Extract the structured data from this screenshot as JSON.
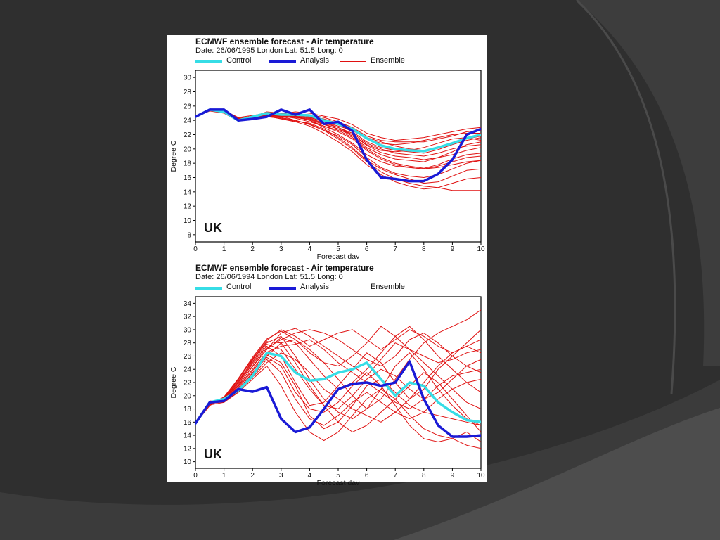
{
  "colors": {
    "background": "#2f2f2f",
    "arc_dark": "#3d3d3d",
    "arc_light": "#585858",
    "control": "#36dde6",
    "analysis": "#1a1ad6",
    "ensemble": "#e01010"
  },
  "chart_data": [
    {
      "type": "line",
      "title": "ECMWF ensemble forecast - Air temperature",
      "subtitle": "Date: 26/06/1995 London Lat: 51.5 Long: 0",
      "xlabel": "Forecast day",
      "ylabel": "Degree C",
      "annotation": "UK",
      "xlim": [
        0,
        10
      ],
      "ylim": [
        7,
        31
      ],
      "xticks": [
        "0",
        "1",
        "2",
        "3",
        "4",
        "5",
        "6",
        "7",
        "8",
        "9",
        "10"
      ],
      "yticks": [
        "8",
        "10",
        "12",
        "14",
        "16",
        "18",
        "20",
        "22",
        "24",
        "26",
        "28",
        "30"
      ],
      "grid": false,
      "legend_position": "top",
      "x": [
        0,
        0.5,
        1,
        1.5,
        2,
        2.5,
        3,
        3.5,
        4,
        4.5,
        5,
        5.5,
        6,
        6.5,
        7,
        7.5,
        8,
        8.5,
        9,
        9.5,
        10
      ],
      "series": [
        {
          "name": "Control",
          "role": "control",
          "values": [
            24.5,
            25.5,
            25.2,
            24.0,
            24.5,
            25.0,
            24.8,
            24.8,
            24.7,
            24.0,
            23.5,
            22.8,
            21.5,
            20.5,
            20.0,
            19.8,
            19.7,
            20.2,
            20.8,
            21.5,
            22.0
          ]
        },
        {
          "name": "Analysis",
          "role": "analysis",
          "values": [
            24.5,
            25.5,
            25.5,
            24.0,
            24.2,
            24.5,
            25.5,
            24.8,
            25.5,
            23.5,
            23.8,
            22.5,
            18.5,
            16.0,
            15.8,
            15.5,
            15.5,
            16.5,
            18.5,
            22.0,
            22.8
          ]
        }
      ],
      "ensemble": {
        "name": "Ensemble",
        "members": [
          [
            24.5,
            25.4,
            25.3,
            24.2,
            24.6,
            24.9,
            24.7,
            24.5,
            24.2,
            23.5,
            22.8,
            22.0,
            20.5,
            19.5,
            19.0,
            18.8,
            18.5,
            18.8,
            19.2,
            19.8,
            20.2
          ],
          [
            24.5,
            25.6,
            25.1,
            24.3,
            24.3,
            24.6,
            24.5,
            24.8,
            24.6,
            24.0,
            23.4,
            22.4,
            21.0,
            20.2,
            19.8,
            19.6,
            19.4,
            19.9,
            20.6,
            21.2,
            21.6
          ],
          [
            24.5,
            25.5,
            25.2,
            24.1,
            24.5,
            25.2,
            25.0,
            24.6,
            24.0,
            23.0,
            22.0,
            20.8,
            19.2,
            18.2,
            17.6,
            17.4,
            17.2,
            17.6,
            18.2,
            18.8,
            19.0
          ],
          [
            24.5,
            25.5,
            25.4,
            24.4,
            24.7,
            25.0,
            24.9,
            25.2,
            25.0,
            24.6,
            24.2,
            23.4,
            22.2,
            21.6,
            21.2,
            21.4,
            21.6,
            22.0,
            22.4,
            22.8,
            23.0
          ],
          [
            24.5,
            25.3,
            25.0,
            23.9,
            24.2,
            24.6,
            24.2,
            23.8,
            23.2,
            22.2,
            21.0,
            19.6,
            17.8,
            16.4,
            15.4,
            14.8,
            14.4,
            14.6,
            15.2,
            15.8,
            16.0
          ],
          [
            24.5,
            25.5,
            25.3,
            24.2,
            24.4,
            24.8,
            24.6,
            24.3,
            23.8,
            23.2,
            22.6,
            21.6,
            20.0,
            18.8,
            18.0,
            17.6,
            17.3,
            17.8,
            18.6,
            19.2,
            19.4
          ],
          [
            24.5,
            25.6,
            25.2,
            24.0,
            24.6,
            25.1,
            24.9,
            24.8,
            24.5,
            23.8,
            23.0,
            22.0,
            20.6,
            19.8,
            19.6,
            19.8,
            20.2,
            20.8,
            21.4,
            21.6,
            21.2
          ],
          [
            24.5,
            25.4,
            25.4,
            24.3,
            24.4,
            24.7,
            24.6,
            24.0,
            23.4,
            22.6,
            21.8,
            20.6,
            18.8,
            17.4,
            16.6,
            16.2,
            16.0,
            16.4,
            17.2,
            18.0,
            18.4
          ],
          [
            24.5,
            25.5,
            25.1,
            24.2,
            24.5,
            24.9,
            24.8,
            24.9,
            24.8,
            24.4,
            23.8,
            23.0,
            21.8,
            21.2,
            21.0,
            21.0,
            21.0,
            21.4,
            21.8,
            22.4,
            22.6
          ],
          [
            24.5,
            25.5,
            25.3,
            24.1,
            24.3,
            24.5,
            24.3,
            23.9,
            23.6,
            22.8,
            21.6,
            20.2,
            18.4,
            17.2,
            16.4,
            15.8,
            15.2,
            15.4,
            16.2,
            17.0,
            17.2
          ],
          [
            24.5,
            25.6,
            25.2,
            24.2,
            24.6,
            25.0,
            24.7,
            24.6,
            24.3,
            23.6,
            23.0,
            22.2,
            20.8,
            20.0,
            19.4,
            19.2,
            19.0,
            19.4,
            20.0,
            20.4,
            20.6
          ],
          [
            24.5,
            25.4,
            25.3,
            24.3,
            24.5,
            24.8,
            24.8,
            24.5,
            24.0,
            23.2,
            22.4,
            21.4,
            19.8,
            18.6,
            17.8,
            17.4,
            17.2,
            17.4,
            17.8,
            18.2,
            18.4
          ],
          [
            24.5,
            25.5,
            25.2,
            24.0,
            24.4,
            24.7,
            24.6,
            24.4,
            24.1,
            23.4,
            22.8,
            21.8,
            20.2,
            19.2,
            18.6,
            18.4,
            18.2,
            18.8,
            19.6,
            20.6,
            21.0
          ],
          [
            24.5,
            25.5,
            25.4,
            24.2,
            24.6,
            25.1,
            25.0,
            24.7,
            24.4,
            23.8,
            23.2,
            22.6,
            21.4,
            20.8,
            20.6,
            20.8,
            21.2,
            21.6,
            22.0,
            22.2,
            22.2
          ],
          [
            24.5,
            25.6,
            25.1,
            24.1,
            24.3,
            24.6,
            24.4,
            24.0,
            23.5,
            22.6,
            21.4,
            20.0,
            18.2,
            16.8,
            15.8,
            15.2,
            14.8,
            14.6,
            14.2,
            14.2,
            14.2
          ],
          [
            24.5,
            25.4,
            25.3,
            24.3,
            24.5,
            24.9,
            24.7,
            24.8,
            24.6,
            24.2,
            23.6,
            22.8,
            21.6,
            21.0,
            20.4,
            20.0,
            19.8,
            20.2,
            20.8,
            21.4,
            21.8
          ]
        ]
      }
    },
    {
      "type": "line",
      "title": "ECMWF ensemble forecast - Air temperature",
      "subtitle": "Date: 26/06/1994 London Lat: 51.5 Long: 0",
      "xlabel": "Forecast day",
      "ylabel": "Degree C",
      "annotation": "UK",
      "xlim": [
        0,
        10
      ],
      "ylim": [
        9,
        35
      ],
      "xticks": [
        "0",
        "1",
        "2",
        "3",
        "4",
        "5",
        "6",
        "7",
        "8",
        "9",
        "10"
      ],
      "yticks": [
        "10",
        "12",
        "14",
        "16",
        "18",
        "20",
        "22",
        "24",
        "26",
        "28",
        "30",
        "32",
        "34"
      ],
      "grid": false,
      "legend_position": "top",
      "x": [
        0,
        0.5,
        1,
        1.5,
        2,
        2.5,
        3,
        3.5,
        4,
        4.5,
        5,
        5.5,
        6,
        6.5,
        7,
        7.5,
        8,
        8.5,
        9,
        9.5,
        10
      ],
      "series": [
        {
          "name": "Control",
          "role": "control",
          "values": [
            15.8,
            19.0,
            19.5,
            20.8,
            23.0,
            26.5,
            26.0,
            23.5,
            22.3,
            22.5,
            23.5,
            24.0,
            25.0,
            22.5,
            20.0,
            22.0,
            21.5,
            19.0,
            17.5,
            16.3,
            16.0
          ]
        },
        {
          "name": "Analysis",
          "role": "analysis",
          "values": [
            15.8,
            19.0,
            19.2,
            21.0,
            20.6,
            21.3,
            16.5,
            14.5,
            15.2,
            18.0,
            21.0,
            21.8,
            22.0,
            21.5,
            22.0,
            25.2,
            19.5,
            15.5,
            13.8,
            13.8,
            14.0
          ]
        }
      ],
      "ensemble": {
        "name": "Ensemble",
        "members": [
          [
            15.8,
            18.6,
            19.0,
            21.5,
            24.5,
            27.0,
            29.5,
            30.2,
            29.0,
            27.5,
            26.0,
            24.5,
            23.0,
            25.5,
            28.0,
            27.0,
            25.0,
            23.0,
            21.0,
            19.0,
            18.0
          ],
          [
            15.8,
            18.8,
            19.5,
            22.0,
            25.0,
            27.5,
            26.0,
            22.0,
            18.5,
            19.0,
            21.5,
            24.0,
            26.5,
            25.0,
            22.0,
            19.5,
            21.0,
            24.0,
            26.0,
            28.0,
            30.0
          ],
          [
            15.8,
            19.0,
            19.2,
            21.0,
            23.5,
            26.0,
            28.0,
            28.5,
            27.0,
            25.0,
            22.5,
            20.0,
            18.0,
            19.5,
            22.5,
            25.5,
            28.0,
            29.5,
            30.5,
            31.5,
            33.0
          ],
          [
            15.8,
            18.5,
            19.8,
            22.5,
            25.5,
            28.0,
            29.0,
            26.0,
            22.5,
            19.5,
            17.5,
            16.5,
            18.0,
            21.0,
            24.5,
            26.5,
            24.0,
            21.0,
            18.5,
            16.5,
            15.5
          ],
          [
            15.8,
            19.2,
            19.0,
            20.5,
            22.5,
            24.5,
            21.5,
            17.5,
            14.5,
            13.2,
            14.5,
            17.0,
            19.5,
            21.0,
            19.5,
            17.0,
            15.0,
            14.0,
            13.5,
            12.5,
            12.0
          ],
          [
            15.8,
            18.7,
            19.4,
            21.8,
            24.8,
            27.2,
            28.5,
            29.5,
            30.0,
            29.5,
            28.5,
            27.0,
            25.5,
            24.5,
            26.0,
            28.5,
            29.5,
            28.0,
            26.0,
            24.5,
            23.5
          ],
          [
            15.8,
            18.9,
            19.6,
            22.2,
            25.2,
            27.8,
            27.0,
            24.0,
            21.0,
            18.5,
            18.0,
            20.0,
            22.5,
            24.0,
            23.0,
            21.0,
            19.5,
            20.5,
            22.5,
            24.5,
            25.5
          ],
          [
            15.8,
            19.1,
            19.3,
            21.2,
            23.8,
            26.2,
            25.0,
            21.5,
            17.0,
            15.0,
            16.0,
            18.5,
            21.5,
            22.5,
            20.5,
            18.5,
            17.5,
            17.0,
            16.5,
            16.0,
            15.5
          ],
          [
            15.8,
            18.6,
            19.7,
            22.4,
            25.6,
            28.4,
            30.0,
            29.0,
            27.5,
            28.5,
            29.5,
            30.0,
            28.5,
            27.0,
            28.5,
            30.0,
            29.0,
            27.5,
            26.5,
            27.5,
            28.5
          ],
          [
            15.8,
            18.8,
            19.1,
            20.8,
            23.0,
            25.5,
            23.5,
            19.5,
            16.5,
            15.5,
            17.0,
            19.0,
            20.5,
            19.0,
            17.5,
            16.5,
            17.5,
            19.5,
            21.0,
            22.0,
            22.5
          ],
          [
            15.8,
            19.0,
            19.5,
            21.6,
            24.4,
            27.0,
            28.8,
            28.0,
            25.5,
            23.0,
            21.0,
            22.0,
            24.0,
            26.5,
            29.0,
            30.5,
            28.5,
            26.0,
            24.0,
            22.0,
            20.5
          ],
          [
            15.8,
            18.9,
            19.4,
            21.4,
            24.0,
            26.6,
            27.5,
            27.8,
            28.5,
            27.0,
            25.0,
            23.5,
            22.0,
            20.5,
            19.0,
            18.0,
            19.5,
            21.5,
            23.0,
            23.5,
            24.0
          ],
          [
            15.8,
            18.5,
            19.6,
            22.0,
            25.4,
            28.2,
            28.0,
            25.0,
            21.5,
            18.5,
            16.0,
            14.5,
            15.5,
            17.5,
            19.5,
            21.5,
            23.5,
            22.0,
            19.5,
            17.0,
            14.5
          ],
          [
            15.8,
            19.2,
            19.2,
            21.0,
            23.4,
            25.8,
            24.5,
            20.5,
            18.0,
            17.5,
            19.0,
            21.5,
            23.5,
            21.5,
            18.5,
            15.5,
            13.5,
            13.0,
            13.5,
            14.5,
            13.0
          ],
          [
            15.8,
            18.7,
            19.8,
            22.6,
            25.8,
            28.6,
            29.8,
            28.5,
            26.5,
            25.0,
            24.5,
            26.0,
            28.0,
            30.5,
            29.0,
            27.0,
            26.0,
            25.0,
            25.5,
            26.5,
            27.0
          ],
          [
            15.8,
            19.0,
            19.0,
            20.6,
            22.8,
            25.0,
            26.5,
            25.5,
            23.5,
            21.0,
            19.5,
            18.0,
            17.0,
            16.0,
            17.5,
            19.5,
            22.0,
            24.5,
            26.5,
            27.5,
            26.5
          ]
        ]
      }
    }
  ]
}
